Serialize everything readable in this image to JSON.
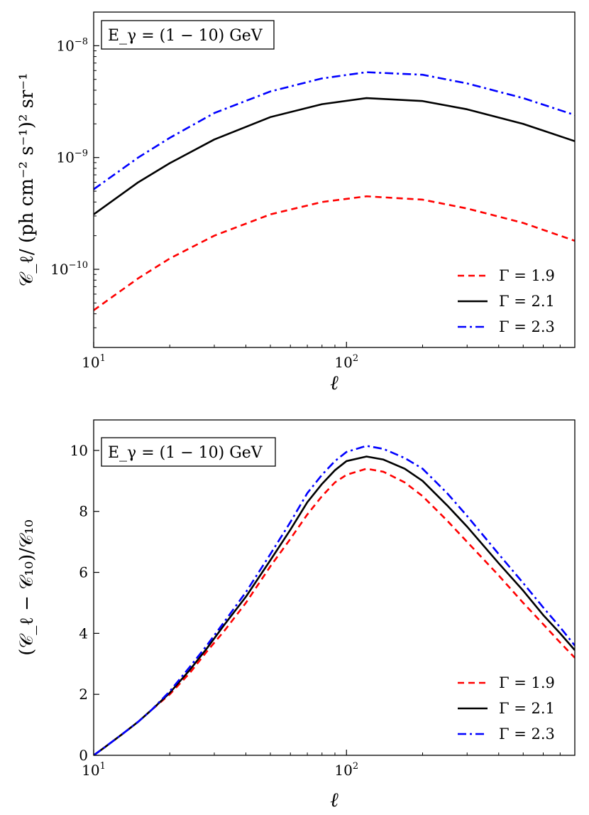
{
  "figure": {
    "background": "#ffffff"
  },
  "series_styles": [
    {
      "color": "#ff0000",
      "dash": "9,6"
    },
    {
      "color": "#000000",
      "dash": ""
    },
    {
      "color": "#0000ff",
      "dash": "12,5,3,5"
    }
  ],
  "chart_data": [
    {
      "type": "line",
      "xscale": "log",
      "yscale": "log",
      "xlim": [
        10,
        800
      ],
      "ylim": [
        2e-11,
        2e-08
      ],
      "annotation": "E_γ = (1 − 10) GeV",
      "ylabel": "𝒞_ℓ/ (ph cm⁻² s⁻¹)² sr⁻¹",
      "xlabel": "ℓ",
      "xticks": [
        {
          "value": 10,
          "base": "10",
          "exp": "1"
        },
        {
          "value": 100,
          "base": "10",
          "exp": "2"
        }
      ],
      "yticks": [
        {
          "value": 1e-10,
          "base": "10",
          "exp": "−10"
        },
        {
          "value": 1e-09,
          "base": "10",
          "exp": "−9"
        },
        {
          "value": 1e-08,
          "base": "10",
          "exp": "−8"
        }
      ],
      "legend_position": "lower-right",
      "x": [
        10,
        15,
        20,
        30,
        50,
        80,
        120,
        200,
        300,
        500,
        800
      ],
      "series": [
        {
          "name": "Γ = 1.9",
          "values": [
            4.3e-11,
            8.3e-11,
            1.25e-10,
            2e-10,
            3.1e-10,
            4e-10,
            4.5e-10,
            4.2e-10,
            3.5e-10,
            2.6e-10,
            1.8e-10
          ]
        },
        {
          "name": "Γ = 2.1",
          "values": [
            3.1e-10,
            6e-10,
            8.9e-10,
            1.45e-09,
            2.3e-09,
            3e-09,
            3.4e-09,
            3.2e-09,
            2.7e-09,
            2e-09,
            1.4e-09
          ]
        },
        {
          "name": "Γ = 2.3",
          "values": [
            5.2e-10,
            1e-09,
            1.5e-09,
            2.5e-09,
            3.9e-09,
            5.1e-09,
            5.8e-09,
            5.5e-09,
            4.6e-09,
            3.4e-09,
            2.4e-09
          ]
        }
      ]
    },
    {
      "type": "line",
      "xscale": "log",
      "yscale": "linear",
      "xlim": [
        10,
        800
      ],
      "ylim": [
        0,
        11
      ],
      "annotation": "E_γ = (1 − 10) GeV",
      "ylabel": "(𝒞_ℓ − 𝒞₁₀)/𝒞₁₀",
      "xlabel": "ℓ",
      "xticks": [
        {
          "value": 10,
          "base": "10",
          "exp": "1"
        },
        {
          "value": 100,
          "base": "10",
          "exp": "2"
        }
      ],
      "yticks": [
        {
          "value": 0,
          "label": "0"
        },
        {
          "value": 2,
          "label": "2"
        },
        {
          "value": 4,
          "label": "4"
        },
        {
          "value": 6,
          "label": "6"
        },
        {
          "value": 8,
          "label": "8"
        },
        {
          "value": 10,
          "label": "10"
        }
      ],
      "legend_position": "lower-right",
      "x": [
        10,
        11,
        13,
        15,
        17,
        20,
        24,
        28,
        33,
        40,
        50,
        60,
        70,
        80,
        90,
        100,
        120,
        140,
        170,
        200,
        250,
        300,
        400,
        500,
        600,
        700,
        800
      ],
      "series": [
        {
          "name": "Γ = 1.9",
          "values": [
            0,
            0.25,
            0.7,
            1.1,
            1.5,
            2.0,
            2.7,
            3.4,
            4.1,
            5.0,
            6.2,
            7.1,
            7.9,
            8.5,
            8.95,
            9.2,
            9.4,
            9.3,
            8.95,
            8.5,
            7.7,
            7.0,
            5.9,
            5.0,
            4.3,
            3.7,
            3.2
          ]
        },
        {
          "name": "Γ = 2.1",
          "values": [
            0,
            0.25,
            0.7,
            1.1,
            1.5,
            2.05,
            2.8,
            3.5,
            4.3,
            5.2,
            6.4,
            7.4,
            8.3,
            8.9,
            9.35,
            9.65,
            9.8,
            9.7,
            9.4,
            9.0,
            8.2,
            7.5,
            6.3,
            5.4,
            4.6,
            4.0,
            3.45
          ]
        },
        {
          "name": "Γ = 2.3",
          "values": [
            0,
            0.25,
            0.7,
            1.1,
            1.5,
            2.1,
            2.9,
            3.6,
            4.4,
            5.35,
            6.6,
            7.65,
            8.6,
            9.2,
            9.65,
            9.95,
            10.15,
            10.05,
            9.75,
            9.4,
            8.6,
            7.85,
            6.6,
            5.65,
            4.85,
            4.2,
            3.6
          ]
        }
      ]
    }
  ]
}
